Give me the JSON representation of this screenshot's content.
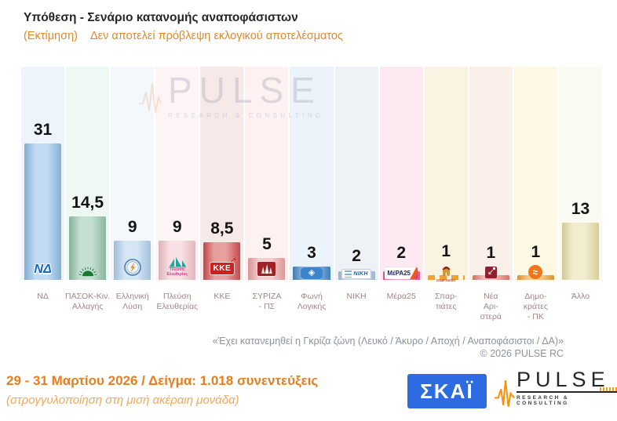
{
  "header": {
    "title": "Υπόθεση - Σενάριο κατανομής αναποφάσιστων",
    "subtitle_label": "(Εκτίμηση)",
    "subtitle_text": "Δεν αποτελεί πρόβλεψη εκλογικού αποτελέσματος"
  },
  "chart_data": {
    "type": "bar",
    "title": "Υπόθεση - Σενάριο κατανομής αναποφάσιστων",
    "subtitle": "(Εκτίμηση) Δεν αποτελεί πρόβλεψη εκλογικού αποτελέσματος",
    "unit": "percent",
    "ylim": [
      0,
      33
    ],
    "grid": false,
    "legend": "none",
    "categories": [
      "ΝΔ",
      "ΠΑΣΟΚ-Κιν. Αλλαγής",
      "Ελληνική Λύση",
      "Πλεύση Ελευθερίας",
      "ΚΚΕ",
      "ΣΥΡΙΖΑ - ΠΣ",
      "Φωνή Λογικής",
      "ΝΙΚΗ",
      "Μέρα25",
      "Σπαρτιάτες",
      "Νέα Αριστερά",
      "Δημοκράτες - ΠΚ",
      "Άλλο"
    ],
    "values": [
      31,
      14.5,
      9,
      9,
      8.5,
      5,
      3,
      2,
      2,
      1,
      1,
      1,
      13
    ],
    "value_labels": [
      "31",
      "14,5",
      "9",
      "9",
      "8,5",
      "5",
      "3",
      "2",
      "2",
      "1",
      "1",
      "1",
      "13"
    ],
    "label_lines": [
      [
        "ΝΔ"
      ],
      [
        "ΠΑΣΟΚ-Κιν.",
        "Αλλαγής"
      ],
      [
        "Ελληνική",
        "Λύση"
      ],
      [
        "Πλεύση",
        "Ελευθερίας"
      ],
      [
        "ΚΚΕ"
      ],
      [
        "ΣΥΡΙΖΑ",
        "- ΠΣ"
      ],
      [
        "Φωνή",
        "Λογικής"
      ],
      [
        "ΝΙΚΗ"
      ],
      [
        "Μέρα25"
      ],
      [
        "Σπαρ-",
        "τιάτες"
      ],
      [
        "Νέα",
        "Αρι-",
        "στερά"
      ],
      [
        "Δημο-",
        "κράτες",
        "- ΠΚ"
      ],
      [
        "Άλλο"
      ]
    ],
    "bar_colors": [
      "#8ebfe8",
      "#96c5ad",
      "#b2d2ee",
      "#f4c6cd",
      "#d65050",
      "#efa6a6",
      "#4489cc",
      "#a9c6e2",
      "#ef5f9a",
      "#f2a12f",
      "#e2806e",
      "#f2a12f",
      "#e9dfa8"
    ],
    "column_bg_colors": [
      "#edf4fb",
      "#f0f8f4",
      "#f3f8fc",
      "#fdf4f6",
      "#f8e9e9",
      "#fdf1f1",
      "#edf3fa",
      "#eef2f7",
      "#fce9f2",
      "#faf3e1",
      "#fbf0e9",
      "#fdf8e3",
      "#fbfaf3"
    ],
    "logo_icons": [
      "nd-logo",
      "pasok-sun-logo",
      "elliniki-lysi-compass-logo",
      "plefsi-eleftherias-sailboat-logo",
      "kke-logo",
      "syriza-logo",
      "foni-logikis-diamond-logo",
      "niki-logo",
      "mera25-logo",
      "spartiates-helmet-logo",
      "nea-aristera-arrow-logo",
      "dimokrates-wave-logo",
      null
    ],
    "footnote": "«Έχει κατανεμηθεί η Γκρίζα ζώνη (Λευκό / Άκυρο / Αποχή / Αναποφάσιστοι / ΔΑ)»",
    "copyright": "© 2026 PULSE RC"
  },
  "watermark": {
    "text": "PULSE",
    "subtext": "RESEARCH & CONSULTING"
  },
  "footer": {
    "date_sample": "29 - 31 Μαρτίου 2026 / Δείγμα: 1.018 συνεντεύξεις",
    "rounding_note": "(στρογγυλοποίηση στη μισή ακέραιη μονάδα)",
    "skai_logo_text": "ΣΚΑΪ",
    "pulse_logo_text": "PULSE",
    "pulse_logo_subtext": "RESEARCH & CONSULTING"
  },
  "colors": {
    "subtitle_orange": "#e0892f",
    "footer_orange": "#e87d1e",
    "footer_orange_light": "#f0a85c",
    "note_gray": "#8a939b",
    "category_label": "#a28585",
    "skai_blue": "#2d6be0",
    "pulse_wave_orange": "#f5920a",
    "value_label": "#141414"
  }
}
